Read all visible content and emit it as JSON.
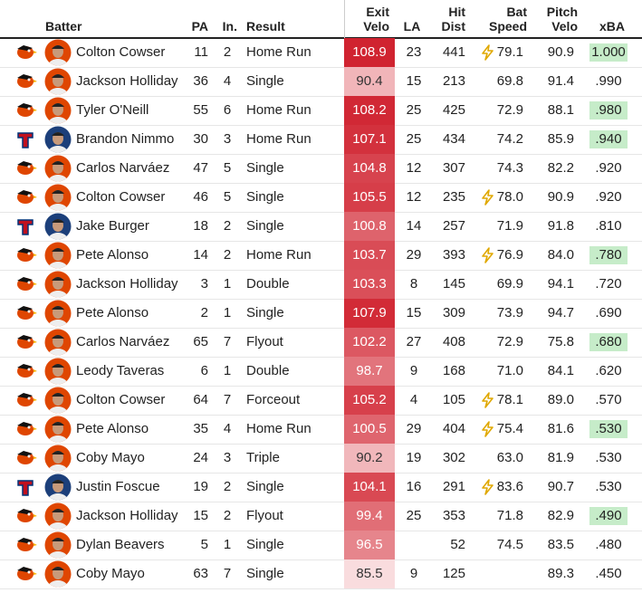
{
  "table": {
    "headers": {
      "batter": "Batter",
      "pa": "PA",
      "inning": "In.",
      "result": "Result",
      "exit_velo": "Exit Velo",
      "la": "LA",
      "hit_dist": "Hit Dist",
      "bat_speed": "Bat Speed",
      "pitch_velo": "Pitch Velo",
      "xba": "xBA"
    },
    "rows": [
      {
        "logo": "orioles",
        "batter": "Colton Cowser",
        "pa": "11",
        "inning": "2",
        "result": "Home Run",
        "exit_velo": "108.9",
        "la": "23",
        "hit_dist": "441",
        "bat_speed": "79.1",
        "bat_speed_fast": true,
        "pitch_velo": "90.9",
        "xba": "1.000",
        "xba_highlight": true
      },
      {
        "logo": "orioles",
        "batter": "Jackson Holliday",
        "pa": "36",
        "inning": "4",
        "result": "Single",
        "exit_velo": "90.4",
        "la": "15",
        "hit_dist": "213",
        "bat_speed": "69.8",
        "bat_speed_fast": false,
        "pitch_velo": "91.4",
        "xba": ".990",
        "xba_highlight": false
      },
      {
        "logo": "orioles",
        "batter": "Tyler O'Neill",
        "pa": "55",
        "inning": "6",
        "result": "Home Run",
        "exit_velo": "108.2",
        "la": "25",
        "hit_dist": "425",
        "bat_speed": "72.9",
        "bat_speed_fast": false,
        "pitch_velo": "88.1",
        "xba": ".980",
        "xba_highlight": true
      },
      {
        "logo": "rangers",
        "batter": "Brandon Nimmo",
        "pa": "30",
        "inning": "3",
        "result": "Home Run",
        "exit_velo": "107.1",
        "la": "25",
        "hit_dist": "434",
        "bat_speed": "74.2",
        "bat_speed_fast": false,
        "pitch_velo": "85.9",
        "xba": ".940",
        "xba_highlight": true
      },
      {
        "logo": "orioles",
        "batter": "Carlos Narváez",
        "pa": "47",
        "inning": "5",
        "result": "Single",
        "exit_velo": "104.8",
        "la": "12",
        "hit_dist": "307",
        "bat_speed": "74.3",
        "bat_speed_fast": false,
        "pitch_velo": "82.2",
        "xba": ".920",
        "xba_highlight": false
      },
      {
        "logo": "orioles",
        "batter": "Colton Cowser",
        "pa": "46",
        "inning": "5",
        "result": "Single",
        "exit_velo": "105.5",
        "la": "12",
        "hit_dist": "235",
        "bat_speed": "78.0",
        "bat_speed_fast": true,
        "pitch_velo": "90.9",
        "xba": ".920",
        "xba_highlight": false
      },
      {
        "logo": "rangers",
        "batter": "Jake Burger",
        "pa": "18",
        "inning": "2",
        "result": "Single",
        "exit_velo": "100.8",
        "la": "14",
        "hit_dist": "257",
        "bat_speed": "71.9",
        "bat_speed_fast": false,
        "pitch_velo": "91.8",
        "xba": ".810",
        "xba_highlight": false
      },
      {
        "logo": "orioles",
        "batter": "Pete Alonso",
        "pa": "14",
        "inning": "2",
        "result": "Home Run",
        "exit_velo": "103.7",
        "la": "29",
        "hit_dist": "393",
        "bat_speed": "76.9",
        "bat_speed_fast": true,
        "pitch_velo": "84.0",
        "xba": ".780",
        "xba_highlight": true
      },
      {
        "logo": "orioles",
        "batter": "Jackson Holliday",
        "pa": "3",
        "inning": "1",
        "result": "Double",
        "exit_velo": "103.3",
        "la": "8",
        "hit_dist": "145",
        "bat_speed": "69.9",
        "bat_speed_fast": false,
        "pitch_velo": "94.1",
        "xba": ".720",
        "xba_highlight": false
      },
      {
        "logo": "orioles",
        "batter": "Pete Alonso",
        "pa": "2",
        "inning": "1",
        "result": "Single",
        "exit_velo": "107.9",
        "la": "15",
        "hit_dist": "309",
        "bat_speed": "73.9",
        "bat_speed_fast": false,
        "pitch_velo": "94.7",
        "xba": ".690",
        "xba_highlight": false
      },
      {
        "logo": "orioles",
        "batter": "Carlos Narváez",
        "pa": "65",
        "inning": "7",
        "result": "Flyout",
        "exit_velo": "102.2",
        "la": "27",
        "hit_dist": "408",
        "bat_speed": "72.9",
        "bat_speed_fast": false,
        "pitch_velo": "75.8",
        "xba": ".680",
        "xba_highlight": true
      },
      {
        "logo": "orioles",
        "batter": "Leody Taveras",
        "pa": "6",
        "inning": "1",
        "result": "Double",
        "exit_velo": "98.7",
        "la": "9",
        "hit_dist": "168",
        "bat_speed": "71.0",
        "bat_speed_fast": false,
        "pitch_velo": "84.1",
        "xba": ".620",
        "xba_highlight": false
      },
      {
        "logo": "orioles",
        "batter": "Colton Cowser",
        "pa": "64",
        "inning": "7",
        "result": "Forceout",
        "exit_velo": "105.2",
        "la": "4",
        "hit_dist": "105",
        "bat_speed": "78.1",
        "bat_speed_fast": true,
        "pitch_velo": "89.0",
        "xba": ".570",
        "xba_highlight": false
      },
      {
        "logo": "orioles",
        "batter": "Pete Alonso",
        "pa": "35",
        "inning": "4",
        "result": "Home Run",
        "exit_velo": "100.5",
        "la": "29",
        "hit_dist": "404",
        "bat_speed": "75.4",
        "bat_speed_fast": true,
        "pitch_velo": "81.6",
        "xba": ".530",
        "xba_highlight": true
      },
      {
        "logo": "orioles",
        "batter": "Coby Mayo",
        "pa": "24",
        "inning": "3",
        "result": "Triple",
        "exit_velo": "90.2",
        "la": "19",
        "hit_dist": "302",
        "bat_speed": "63.0",
        "bat_speed_fast": false,
        "pitch_velo": "81.9",
        "xba": ".530",
        "xba_highlight": false
      },
      {
        "logo": "rangers",
        "batter": "Justin Foscue",
        "pa": "19",
        "inning": "2",
        "result": "Single",
        "exit_velo": "104.1",
        "la": "16",
        "hit_dist": "291",
        "bat_speed": "83.6",
        "bat_speed_fast": true,
        "pitch_velo": "90.7",
        "xba": ".530",
        "xba_highlight": false
      },
      {
        "logo": "orioles",
        "batter": "Jackson Holliday",
        "pa": "15",
        "inning": "2",
        "result": "Flyout",
        "exit_velo": "99.4",
        "la": "25",
        "hit_dist": "353",
        "bat_speed": "71.8",
        "bat_speed_fast": false,
        "pitch_velo": "82.9",
        "xba": ".490",
        "xba_highlight": true
      },
      {
        "logo": "orioles",
        "batter": "Dylan Beavers",
        "pa": "5",
        "inning": "1",
        "result": "Single",
        "exit_velo": "96.5",
        "la": null,
        "hit_dist": "52",
        "bat_speed": "74.5",
        "bat_speed_fast": false,
        "pitch_velo": "83.5",
        "xba": ".480",
        "xba_highlight": false
      },
      {
        "logo": "orioles",
        "batter": "Coby Mayo",
        "pa": "63",
        "inning": "7",
        "result": "Single",
        "exit_velo": "85.5",
        "la": "9",
        "hit_dist": "125",
        "bat_speed": null,
        "bat_speed_fast": false,
        "pitch_velo": "89.3",
        "xba": ".450",
        "xba_highlight": false
      }
    ]
  }
}
